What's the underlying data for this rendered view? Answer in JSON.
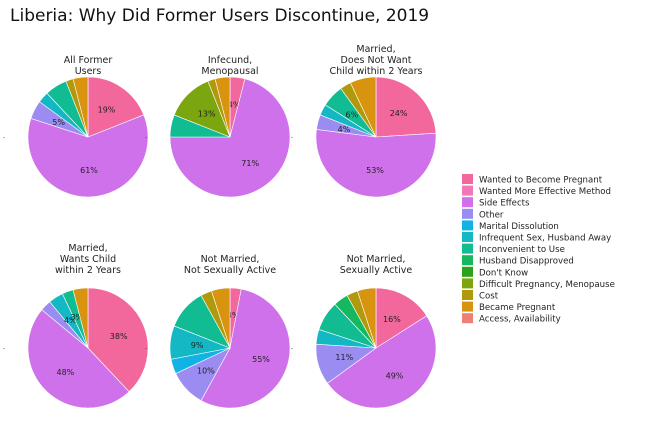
{
  "chart_data": {
    "type": "pie",
    "title": "Liberia: Why Did Former Users Discontinue, 2019",
    "legend_position": "right",
    "legend": [
      {
        "label": "Wanted to Become Pregnant",
        "color": "#f2689c"
      },
      {
        "label": "Wanted More Effective Method",
        "color": "#f177b8"
      },
      {
        "label": "Side Effects",
        "color": "#cf71ea"
      },
      {
        "label": "Other",
        "color": "#9a8cf1"
      },
      {
        "label": "Marital Dissolution",
        "color": "#12b2e6"
      },
      {
        "label": "Infrequent Sex, Husband Away",
        "color": "#13b8c4"
      },
      {
        "label": "Inconvenient to Use",
        "color": "#12bc93"
      },
      {
        "label": "Husband Disapproved",
        "color": "#16b85f"
      },
      {
        "label": "Don't Know",
        "color": "#2ba21a"
      },
      {
        "label": "Difficult Pregnancy, Menopause",
        "color": "#7ba60f"
      },
      {
        "label": "Cost",
        "color": "#b09a0c"
      },
      {
        "label": "Became Pregnant",
        "color": "#d8940f"
      },
      {
        "label": "Access, Availability",
        "color": "#ef7f73"
      }
    ],
    "panels": [
      {
        "title": [
          "All Former",
          "Users"
        ],
        "slices": [
          {
            "category": "Wanted to Become Pregnant",
            "value": 19,
            "label": "19%"
          },
          {
            "category": "Side Effects",
            "value": 61,
            "label": "61%"
          },
          {
            "category": "Other",
            "value": 5,
            "label": "5%"
          },
          {
            "category": "Infrequent Sex, Husband Away",
            "value": 3,
            "label": ""
          },
          {
            "category": "Inconvenient to Use",
            "value": 6,
            "label": ""
          },
          {
            "category": "Cost",
            "value": 2,
            "label": ""
          },
          {
            "category": "Became Pregnant",
            "value": 4,
            "label": ""
          }
        ]
      },
      {
        "title": [
          "Infecund,",
          "Menopausal"
        ],
        "slices": [
          {
            "category": "Wanted to Become Pregnant",
            "value": 4,
            "label": "4%"
          },
          {
            "category": "Side Effects",
            "value": 71,
            "label": "71%"
          },
          {
            "category": "Inconvenient to Use",
            "value": 6,
            "label": ""
          },
          {
            "category": "Difficult Pregnancy, Menopause",
            "value": 13,
            "label": "13%"
          },
          {
            "category": "Cost",
            "value": 2,
            "label": ""
          },
          {
            "category": "Became Pregnant",
            "value": 4,
            "label": ""
          }
        ]
      },
      {
        "title": [
          "Married,",
          "Does Not Want",
          "Child within 2 Years"
        ],
        "slices": [
          {
            "category": "Wanted to Become Pregnant",
            "value": 24,
            "label": "24%"
          },
          {
            "category": "Side Effects",
            "value": 53,
            "label": "53%"
          },
          {
            "category": "Other",
            "value": 4,
            "label": "4%"
          },
          {
            "category": "Infrequent Sex, Husband Away",
            "value": 3,
            "label": ""
          },
          {
            "category": "Inconvenient to Use",
            "value": 6,
            "label": "6%"
          },
          {
            "category": "Cost",
            "value": 3,
            "label": ""
          },
          {
            "category": "Became Pregnant",
            "value": 7,
            "label": ""
          }
        ]
      },
      {
        "title": [
          "Married,",
          "Wants Child",
          "within 2 Years"
        ],
        "slices": [
          {
            "category": "Wanted to Become Pregnant",
            "value": 38,
            "label": "38%"
          },
          {
            "category": "Side Effects",
            "value": 48,
            "label": "48%"
          },
          {
            "category": "Other",
            "value": 3,
            "label": ""
          },
          {
            "category": "Infrequent Sex, Husband Away",
            "value": 4,
            "label": "4%"
          },
          {
            "category": "Inconvenient to Use",
            "value": 3,
            "label": "3%"
          },
          {
            "category": "Became Pregnant",
            "value": 4,
            "label": ""
          }
        ]
      },
      {
        "title": [
          "Not Married,",
          "Not Sexually Active"
        ],
        "slices": [
          {
            "category": "Wanted to Become Pregnant",
            "value": 3,
            "label": "3%"
          },
          {
            "category": "Side Effects",
            "value": 55,
            "label": "55%"
          },
          {
            "category": "Other",
            "value": 10,
            "label": "10%"
          },
          {
            "category": "Marital Dissolution",
            "value": 4,
            "label": ""
          },
          {
            "category": "Infrequent Sex, Husband Away",
            "value": 9,
            "label": "9%"
          },
          {
            "category": "Inconvenient to Use",
            "value": 11,
            "label": ""
          },
          {
            "category": "Cost",
            "value": 3,
            "label": ""
          },
          {
            "category": "Became Pregnant",
            "value": 5,
            "label": ""
          }
        ]
      },
      {
        "title": [
          "Not Married,",
          "Sexually Active"
        ],
        "slices": [
          {
            "category": "Wanted to Become Pregnant",
            "value": 16,
            "label": "16%"
          },
          {
            "category": "Side Effects",
            "value": 49,
            "label": "49%"
          },
          {
            "category": "Other",
            "value": 11,
            "label": "11%"
          },
          {
            "category": "Infrequent Sex, Husband Away",
            "value": 4,
            "label": ""
          },
          {
            "category": "Inconvenient to Use",
            "value": 8,
            "label": ""
          },
          {
            "category": "Husband Disapproved",
            "value": 4,
            "label": ""
          },
          {
            "category": "Cost",
            "value": 3,
            "label": ""
          },
          {
            "category": "Became Pregnant",
            "value": 5,
            "label": ""
          }
        ]
      }
    ]
  },
  "tick_mark": "-"
}
